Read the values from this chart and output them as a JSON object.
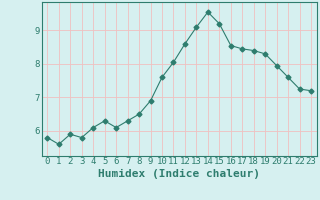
{
  "x": [
    0,
    1,
    2,
    3,
    4,
    5,
    6,
    7,
    8,
    9,
    10,
    11,
    12,
    13,
    14,
    15,
    16,
    17,
    18,
    19,
    20,
    21,
    22,
    23
  ],
  "y": [
    5.8,
    5.6,
    5.9,
    5.8,
    6.1,
    6.3,
    6.1,
    6.3,
    6.5,
    6.9,
    7.6,
    8.05,
    8.6,
    9.1,
    9.55,
    9.2,
    8.55,
    8.45,
    8.4,
    8.3,
    7.95,
    7.6,
    7.25,
    7.2
  ],
  "line_color": "#2e7d6e",
  "marker": "D",
  "marker_size": 2.5,
  "bg_color": "#d6f0f0",
  "grid_color": "#f0c0c0",
  "xlabel": "Humidex (Indice chaleur)",
  "xlabel_fontsize": 8,
  "tick_fontsize": 6.5,
  "xlim": [
    -0.5,
    23.5
  ],
  "ylim": [
    5.25,
    9.85
  ],
  "yticks": [
    6,
    7,
    8,
    9
  ],
  "xticks": [
    0,
    1,
    2,
    3,
    4,
    5,
    6,
    7,
    8,
    9,
    10,
    11,
    12,
    13,
    14,
    15,
    16,
    17,
    18,
    19,
    20,
    21,
    22,
    23
  ]
}
